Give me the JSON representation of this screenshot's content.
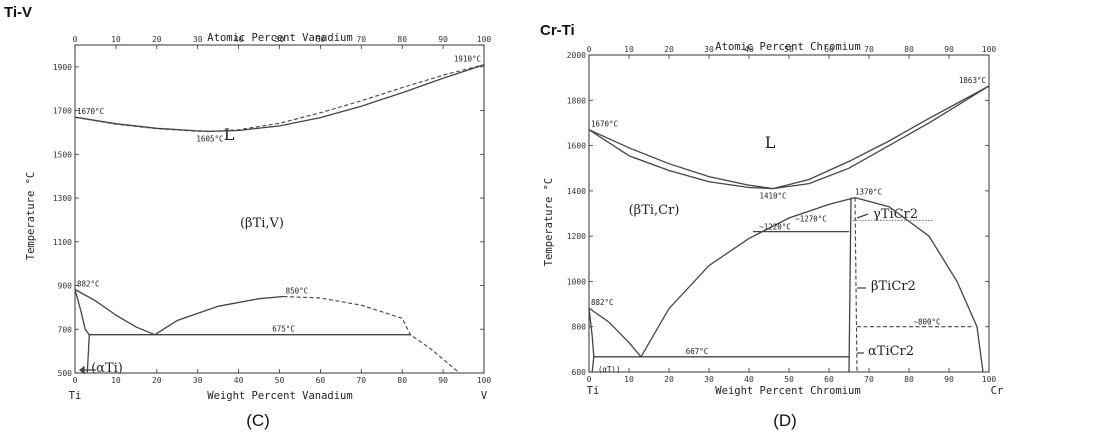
{
  "chart_data": [
    {
      "type": "line",
      "system_title": "Ti-V",
      "caption": "(C)",
      "top_axis": {
        "label": "Atomic Percent Vanadium",
        "range": [
          0,
          100
        ],
        "ticks": [
          "0",
          "10",
          "20",
          "30",
          "40",
          "50",
          "60",
          "70",
          "80",
          "90",
          "100"
        ]
      },
      "xlabel": "Weight Percent Vanadium",
      "ylabel": "Temperature °C",
      "xlim": [
        0,
        100
      ],
      "ylim": [
        500,
        2000
      ],
      "y_ticks": [
        "500",
        "700",
        "900",
        "1100",
        "1300",
        "1500",
        "1700",
        "1900"
      ],
      "x_ticks": [
        "0",
        "10",
        "20",
        "30",
        "40",
        "50",
        "60",
        "70",
        "80",
        "90",
        "100"
      ],
      "end_labels": {
        "left": "Ti",
        "right": "V"
      },
      "regions": [
        "L",
        "(βTi,V)",
        "(αTi)"
      ],
      "annotations": [
        {
          "text": "1670°C",
          "x": 0,
          "y": 1670
        },
        {
          "text": "1605°C",
          "x": 33,
          "y": 1605
        },
        {
          "text": "1910°C",
          "x": 100,
          "y": 1910
        },
        {
          "text": "882°C",
          "x": 0,
          "y": 882
        },
        {
          "text": "850°C",
          "x": 51,
          "y": 850
        },
        {
          "text": "675°C",
          "x": 51,
          "y": 675
        }
      ],
      "series": [
        {
          "name": "liquidus",
          "style": "solid",
          "x": [
            0,
            10,
            20,
            30,
            33,
            40,
            50,
            60,
            70,
            80,
            90,
            100
          ],
          "y": [
            1670,
            1640,
            1619,
            1607,
            1605,
            1609,
            1630,
            1668,
            1720,
            1782,
            1848,
            1910
          ]
        },
        {
          "name": "solidus",
          "style": "dashed",
          "x": [
            0,
            10,
            20,
            30,
            33,
            40,
            50,
            60,
            70,
            80,
            90,
            100
          ],
          "y": [
            1670,
            1638,
            1617,
            1606,
            1605,
            1612,
            1642,
            1690,
            1745,
            1805,
            1862,
            1910
          ]
        },
        {
          "name": "beta transus (Ti-rich)",
          "style": "solid",
          "x": [
            0,
            5,
            10,
            15,
            19.5
          ],
          "y": [
            882,
            830,
            765,
            710,
            675
          ]
        },
        {
          "name": "alpha solvus",
          "style": "solid",
          "x": [
            0,
            1.5,
            2.5,
            3.5,
            3
          ],
          "y": [
            882,
            780,
            700,
            675,
            500
          ]
        },
        {
          "name": "miscibility gap dome",
          "style": "solid",
          "x": [
            19.5,
            25,
            35,
            45,
            51
          ],
          "y": [
            675,
            740,
            805,
            840,
            850
          ]
        },
        {
          "name": "miscibility gap dome (dashed)",
          "style": "dashed",
          "x": [
            51,
            60,
            70,
            80,
            82,
            87,
            94
          ],
          "y": [
            850,
            843,
            810,
            750,
            675,
            610,
            500
          ]
        },
        {
          "name": "monotectoid isotherm",
          "style": "solid",
          "x": [
            3.5,
            82
          ],
          "y": [
            675,
            675
          ]
        }
      ]
    },
    {
      "type": "line",
      "system_title": "Cr-Ti",
      "caption": "(D)",
      "top_axis": {
        "label": "Atomic Percent Chromium",
        "range": [
          0,
          100
        ],
        "ticks": [
          "0",
          "10",
          "20",
          "30",
          "40",
          "50",
          "60",
          "70",
          "80",
          "90",
          "100"
        ]
      },
      "xlabel": "Weight Percent Chromium",
      "ylabel": "Temperature °C",
      "xlim": [
        0,
        100
      ],
      "ylim": [
        600,
        2000
      ],
      "y_ticks": [
        "600",
        "800",
        "1000",
        "1200",
        "1400",
        "1600",
        "1800",
        "2000"
      ],
      "x_ticks": [
        "0",
        "10",
        "20",
        "30",
        "40",
        "50",
        "60",
        "70",
        "80",
        "90",
        "100"
      ],
      "end_labels": {
        "left": "Ti",
        "right": "Cr"
      },
      "regions": [
        "L",
        "(βTi,Cr)",
        "γTiCr2",
        "βTiCr2",
        "αTiCr2",
        "(αTi)"
      ],
      "annotations": [
        {
          "text": "1670°C",
          "x": 0,
          "y": 1670
        },
        {
          "text": "1863°C",
          "x": 100,
          "y": 1863
        },
        {
          "text": "1410°C",
          "x": 46,
          "y": 1410
        },
        {
          "text": "1370°C",
          "x": 66,
          "y": 1370
        },
        {
          "text": "~1270°C",
          "x": 55,
          "y": 1270
        },
        {
          "text": "~1220°C",
          "x": 46,
          "y": 1220
        },
        {
          "text": "882°C",
          "x": 0,
          "y": 882
        },
        {
          "text": "667°C",
          "x": 27,
          "y": 667
        },
        {
          "text": "~800°C",
          "x": 84,
          "y": 800
        }
      ],
      "series": [
        {
          "name": "liquidus",
          "style": "solid",
          "x": [
            0,
            10,
            20,
            30,
            40,
            46,
            55,
            65,
            75,
            85,
            100
          ],
          "y": [
            1670,
            1590,
            1520,
            1463,
            1425,
            1410,
            1450,
            1530,
            1620,
            1720,
            1863
          ]
        },
        {
          "name": "solidus",
          "style": "solid",
          "x": [
            0,
            10,
            20,
            30,
            40,
            46,
            55,
            65,
            75,
            85,
            100
          ],
          "y": [
            1670,
            1555,
            1490,
            1440,
            1415,
            1410,
            1432,
            1500,
            1600,
            1700,
            1863
          ]
        },
        {
          "name": "beta solvus (Cr-rich)",
          "style": "solid",
          "x": [
            66.5,
            75,
            85,
            92,
            97,
            98.5
          ],
          "y": [
            1370,
            1330,
            1200,
            1000,
            800,
            600
          ]
        },
        {
          "name": "beta solvus (Ti-rich)",
          "style": "solid",
          "x": [
            13,
            20,
            30,
            40,
            50,
            60,
            66.5
          ],
          "y": [
            667,
            880,
            1070,
            1190,
            1280,
            1340,
            1370
          ]
        },
        {
          "name": "beta transus",
          "style": "solid",
          "x": [
            0,
            5,
            10,
            13
          ],
          "y": [
            882,
            820,
            730,
            667
          ]
        },
        {
          "name": "alpha solvus",
          "style": "solid",
          "x": [
            0,
            0.8,
            1.2,
            0.8
          ],
          "y": [
            882,
            760,
            667,
            600
          ]
        },
        {
          "name": "eutectoid isotherm",
          "style": "solid",
          "x": [
            1,
            65
          ],
          "y": [
            667,
            667
          ]
        },
        {
          "name": "peritectoid 1220",
          "style": "solid",
          "x": [
            41,
            65
          ],
          "y": [
            1220,
            1220
          ]
        },
        {
          "name": "peritectoid 1270",
          "style": "dotted",
          "x": [
            66,
            86
          ],
          "y": [
            1270,
            1270
          ]
        },
        {
          "name": "transformation 800",
          "style": "dashed",
          "x": [
            67,
            96
          ],
          "y": [
            800,
            800
          ]
        },
        {
          "name": "TiCr2 left boundary",
          "style": "solid",
          "x": [
            65.5,
            65
          ],
          "y": [
            1370,
            600
          ]
        },
        {
          "name": "TiCr2 right boundary",
          "style": "dashed",
          "x": [
            66.5,
            67
          ],
          "y": [
            1370,
            600
          ]
        }
      ]
    }
  ]
}
